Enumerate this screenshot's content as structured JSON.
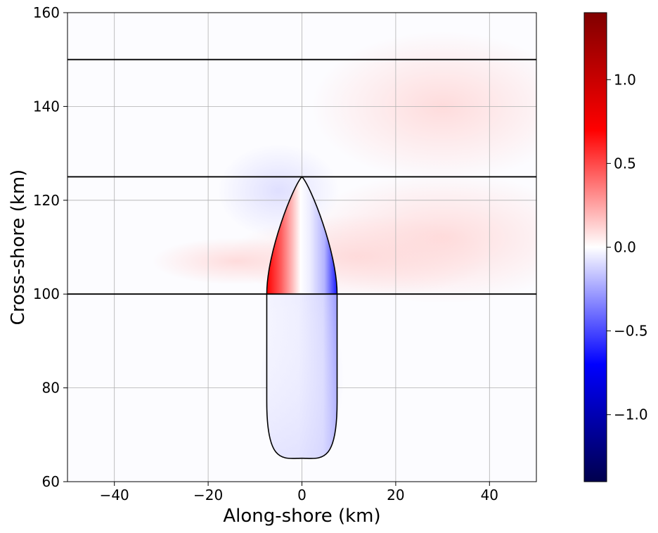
{
  "chart_data": {
    "type": "heatmap",
    "title": "",
    "xlabel": "Along-shore (km)",
    "ylabel": "Cross-shore (km)",
    "xlim": [
      -50,
      50
    ],
    "ylim": [
      60,
      160
    ],
    "grid": true,
    "x_ticks": [
      -40,
      -20,
      0,
      20,
      40
    ],
    "x_tick_labels": [
      "−40",
      "−20",
      "0",
      "20",
      "40"
    ],
    "y_ticks": [
      60,
      80,
      100,
      120,
      140,
      160
    ],
    "y_tick_labels": [
      "60",
      "80",
      "100",
      "120",
      "140",
      "160"
    ],
    "horizontal_lines_y": [
      100,
      125,
      150
    ],
    "body_outline": {
      "x_center": 0,
      "half_width_km": 7.5,
      "bottom_y": 65,
      "top_y": 125,
      "straight_section_top_y": 100
    },
    "colorbar": {
      "colormap": "seismic",
      "vmin": -1.4,
      "vmax": 1.4,
      "ticks": [
        -1.0,
        -0.5,
        0.0,
        0.5,
        1.0
      ],
      "tick_labels": [
        "−1.0",
        "−0.5",
        "0.0",
        "0.5",
        "1.0"
      ],
      "colors": [
        "#00004d",
        "#0000ff",
        "#ffffff",
        "#ff0000",
        "#800000"
      ]
    },
    "field_features": [
      {
        "description": "red",
        "x": -5,
        "y": 115,
        "value": 1.0
      },
      {
        "description": "blue",
        "x": 5,
        "y": 112,
        "value": -0.9
      },
      {
        "description": "pale blue",
        "x": 0,
        "y": 80,
        "value": -0.15
      },
      {
        "description": "pale red",
        "x": 10,
        "y": 108,
        "value": 0.08
      },
      {
        "description": "pale red",
        "x": -20,
        "y": 107,
        "value": 0.05
      },
      {
        "description": "pale blue",
        "x": -5,
        "y": 125,
        "value": -0.05
      }
    ]
  }
}
